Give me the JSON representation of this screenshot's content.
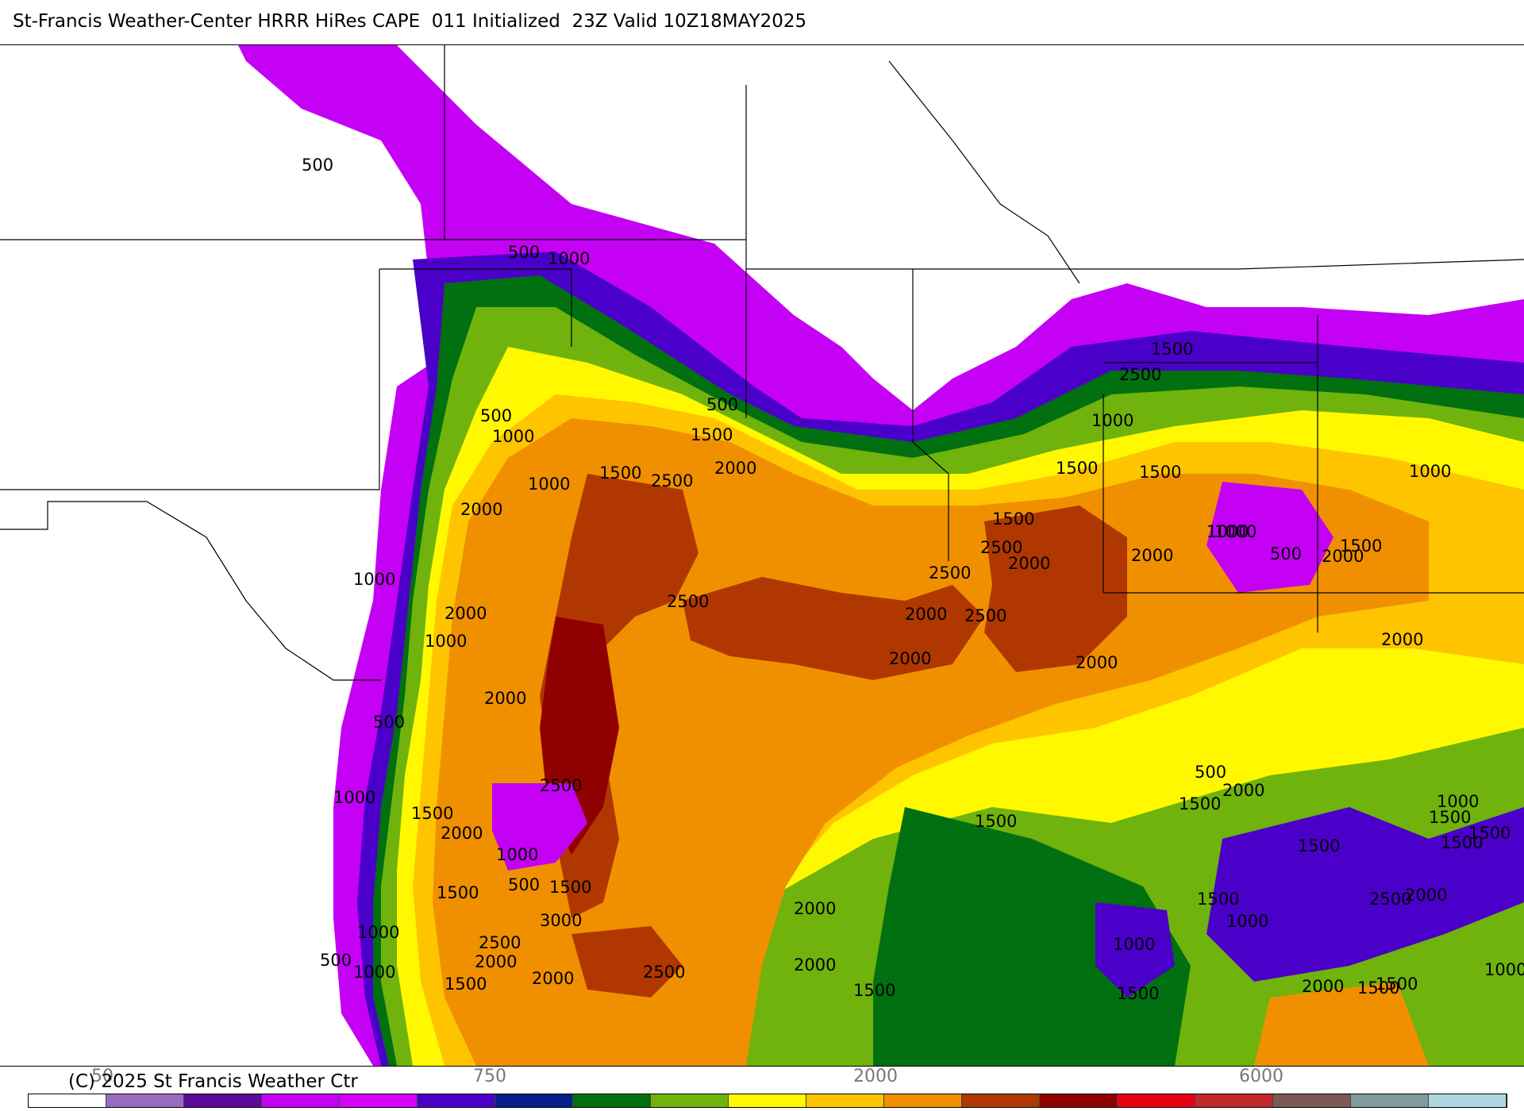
{
  "title": "St-Francis Weather-Center HRRR HiRes CAPE  011 Initialized  23Z Valid 10Z18MAY2025",
  "copyright": "(C) 2025 St Francis Weather Ctr",
  "colorbar": {
    "colors": [
      "#ffffff",
      "#9a6cc0",
      "#5d0a9a",
      "#c400f5",
      "#d400f9",
      "#4a00c8",
      "#071f8a",
      "#007010",
      "#6fb30c",
      "#fff800",
      "#ffc400",
      "#f09000",
      "#b03800",
      "#900000",
      "#e80010",
      "#c0282c",
      "#7a5a52",
      "#7f9b9e",
      "#add8e0"
    ],
    "tick_labels": [
      "50",
      "750",
      "2000",
      "6000"
    ]
  },
  "contour_labels": [
    "500",
    "500",
    "1000",
    "500",
    "1000",
    "1000",
    "500",
    "1500",
    "2000",
    "2500",
    "2000",
    "1500",
    "1000",
    "2000",
    "1000",
    "2500",
    "2000",
    "1500",
    "2000",
    "2500",
    "2500",
    "2000",
    "2000",
    "2500",
    "2000",
    "500",
    "1000",
    "2500",
    "1500",
    "1000",
    "500",
    "1500",
    "2000",
    "1500",
    "3000",
    "2500",
    "2000",
    "1000",
    "500",
    "1000",
    "1500",
    "2000",
    "2500",
    "2000",
    "1500",
    "2000",
    "1500",
    "1500",
    "2000",
    "1500",
    "1000",
    "1000",
    "1500",
    "500",
    "1500",
    "2000",
    "2500",
    "2500",
    "2000",
    "1500",
    "1500",
    "1000",
    "1000",
    "1000",
    "1500",
    "500",
    "2000",
    "1000",
    "1500",
    "2000",
    "1500",
    "1000",
    "1500",
    "1500",
    "1000",
    "2000",
    "1500",
    "1500"
  ]
}
